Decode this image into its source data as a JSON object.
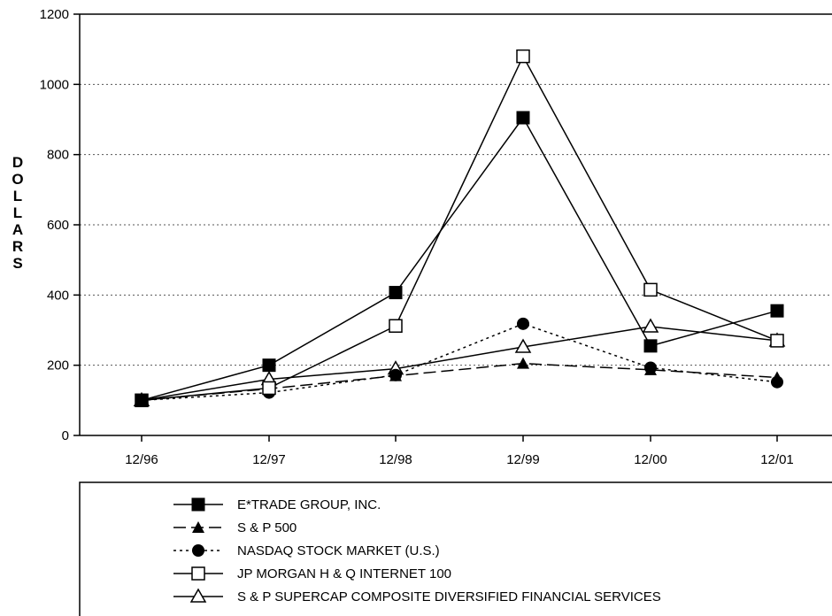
{
  "chart_data": {
    "type": "line",
    "categories": [
      "12/96",
      "12/97",
      "12/98",
      "12/99",
      "12/00",
      "12/01"
    ],
    "ylabel": "DOLLARS",
    "ylim": [
      0,
      1200
    ],
    "yticks": [
      0,
      200,
      400,
      600,
      800,
      1000,
      1200
    ],
    "grid": "horizontal dotted",
    "legend_position": "bottom",
    "series": [
      {
        "name": "E*TRADE GROUP, INC.",
        "values": [
          100,
          200,
          407,
          905,
          255,
          355
        ],
        "marker": "filled-square",
        "dash": "solid"
      },
      {
        "name": "S & P 500",
        "values": [
          100,
          133,
          170,
          205,
          187,
          165
        ],
        "marker": "filled-triangle",
        "dash": "long-dash"
      },
      {
        "name": "NASDAQ STOCK MARKET (U.S.)",
        "values": [
          100,
          122,
          172,
          318,
          193,
          152
        ],
        "marker": "filled-circle",
        "dash": "dotted"
      },
      {
        "name": "JP MORGAN H & Q INTERNET 100",
        "values": [
          100,
          135,
          312,
          1080,
          415,
          270
        ],
        "marker": "open-square",
        "dash": "solid"
      },
      {
        "name": "S & P SUPERCAP COMPOSITE DIVERSIFIED FINANCIAL SERVICES",
        "values": [
          100,
          160,
          190,
          252,
          310,
          270
        ],
        "marker": "open-triangle",
        "dash": "solid"
      }
    ]
  }
}
